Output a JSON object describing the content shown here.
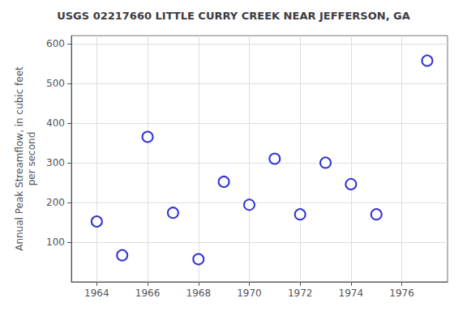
{
  "chart_data": {
    "type": "scatter",
    "title": "USGS 02217660 LITTLE CURRY CREEK NEAR JEFFERSON, GA",
    "ylabel": "Annual Peak Streamflow, in cubic feet\nper second",
    "x": [
      1964,
      1965,
      1966,
      1967,
      1968,
      1969,
      1970,
      1971,
      1972,
      1973,
      1974,
      1975,
      1977
    ],
    "values": [
      152,
      67,
      365,
      174,
      57,
      252,
      194,
      310,
      170,
      300,
      246,
      170,
      557
    ],
    "color": "#0000CC",
    "marker": "circle",
    "xlim": [
      1963.0,
      1977.8
    ],
    "ylim": [
      0,
      620
    ],
    "xticks": [
      1964,
      1966,
      1968,
      1970,
      1972,
      1974,
      1976
    ],
    "yticks": [
      100,
      200,
      300,
      400,
      500,
      600
    ],
    "grid": true
  }
}
